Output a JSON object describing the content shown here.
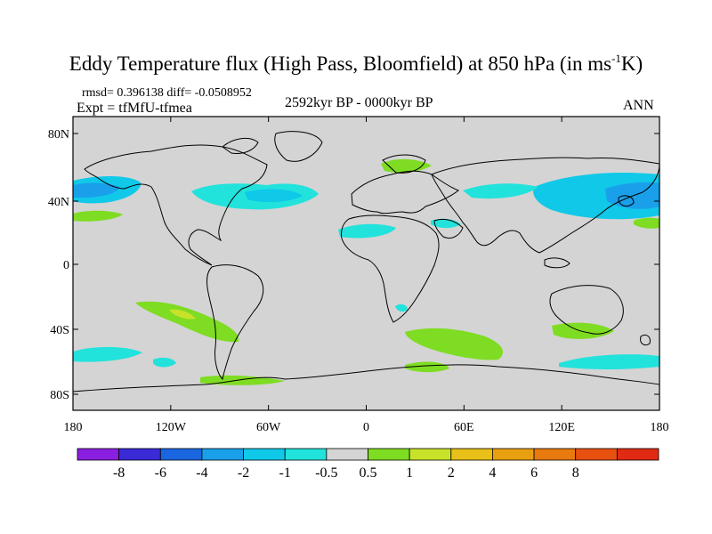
{
  "title": {
    "main": "Eddy Temperature flux (High Pass, Bloomfield) at 850 hPa (in ms",
    "sup": "-1",
    "unit_tail": "K)"
  },
  "stats": "rmsd= 0.396138 diff= -0.0508952",
  "experiment": "Expt = tfMfU-tfmea",
  "period": "2592kyr BP - 0000kyr BP",
  "season": "ANN",
  "axes": {
    "lat_ticks": [
      "80N",
      "40N",
      "0",
      "40S",
      "80S"
    ],
    "lon_ticks": [
      "180",
      "120W",
      "60W",
      "0",
      "60E",
      "120E",
      "180"
    ]
  },
  "colorbar": {
    "colors": [
      "#8a1ee0",
      "#3a2ad8",
      "#1a66e0",
      "#1aa0ea",
      "#10c8e8",
      "#22e2dc",
      "#d4d4d4",
      "#7edc22",
      "#c8e22a",
      "#e8c018",
      "#e8a010",
      "#e87a10",
      "#e85010",
      "#e02a14"
    ],
    "labels": [
      "-8",
      "-6",
      "-4",
      "-2",
      "-1",
      "-0.5",
      "0.5",
      "1",
      "2",
      "4",
      "6",
      "8"
    ]
  },
  "palette": {
    "land_ocean_neutral": "#d4d4d4",
    "positive_light": "#7edc22",
    "positive_mid": "#c8e22a",
    "negative_light": "#22e2dc",
    "negative_mid": "#10c8e8",
    "negative_strong": "#1aa0ea",
    "coastline": "#000000"
  }
}
